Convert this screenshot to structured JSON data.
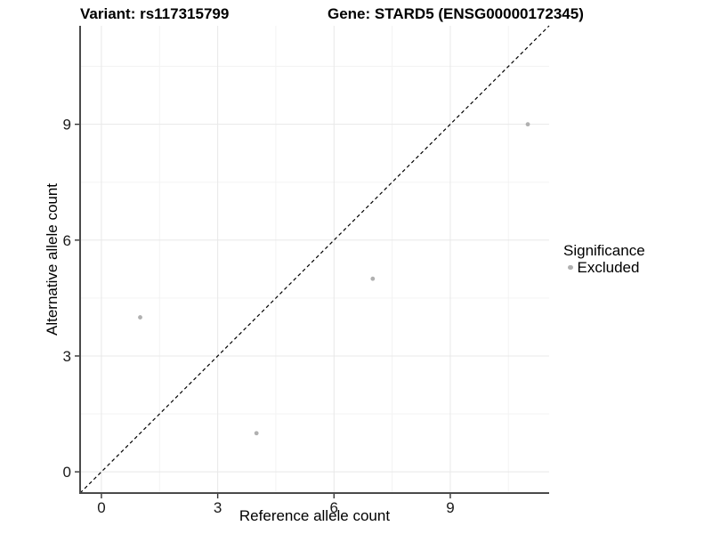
{
  "figure": {
    "title_variant": "Variant: rs117315799",
    "title_gene": "Gene: STARD5 (ENSG00000172345)"
  },
  "chart_data": {
    "type": "scatter",
    "title": "Variant: rs117315799   Gene: STARD5 (ENSG00000172345)",
    "xlabel": "Reference allele count",
    "ylabel": "Alternative allele count",
    "xticks": [
      0,
      3,
      6,
      9
    ],
    "yticks": [
      0,
      3,
      6,
      9
    ],
    "xticks_minor": [
      1.5,
      4.5,
      7.5,
      10.5
    ],
    "yticks_minor": [
      1.5,
      4.5,
      7.5,
      10.5
    ],
    "xlim": [
      -0.55,
      11.55
    ],
    "ylim": [
      -0.55,
      11.55
    ],
    "grid": "major+minor",
    "series": [
      {
        "name": "Excluded",
        "marker": "circle",
        "color": "#b0b0b0",
        "points": [
          [
            1,
            4
          ],
          [
            4,
            1
          ],
          [
            7,
            5
          ],
          [
            11,
            9
          ]
        ]
      }
    ],
    "reference_line": {
      "type": "identity y=x",
      "style": "dashed",
      "color": "#000000"
    },
    "legend": {
      "title": "Significance",
      "position": "right",
      "items": [
        {
          "label": "Excluded",
          "color": "#b0b0b0",
          "marker": "circle"
        }
      ]
    }
  },
  "colors": {
    "background": "#ffffff",
    "grid_major": "#e8e8e8",
    "grid_minor": "#f3f3f3",
    "axis_line": "#4a4a4a",
    "tick_mark": "#333333",
    "tick_label": "#1a1a1a",
    "point": "#b0b0b0",
    "identity_line": "#000000"
  }
}
